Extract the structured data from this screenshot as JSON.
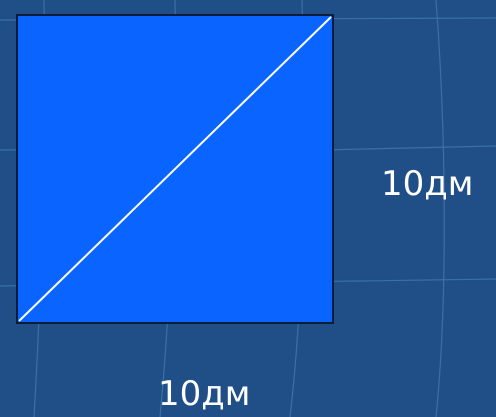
{
  "diagram": {
    "side_label_right": "10дм",
    "side_label_bottom": "10дм"
  },
  "colors": {
    "background": "#1f4f86",
    "grid_line": "#4c7fb8",
    "square_fill": "#0a64ff",
    "square_border": "#0a1d3a",
    "diagonal": "#ffffff",
    "label_text": "#ffffff"
  }
}
